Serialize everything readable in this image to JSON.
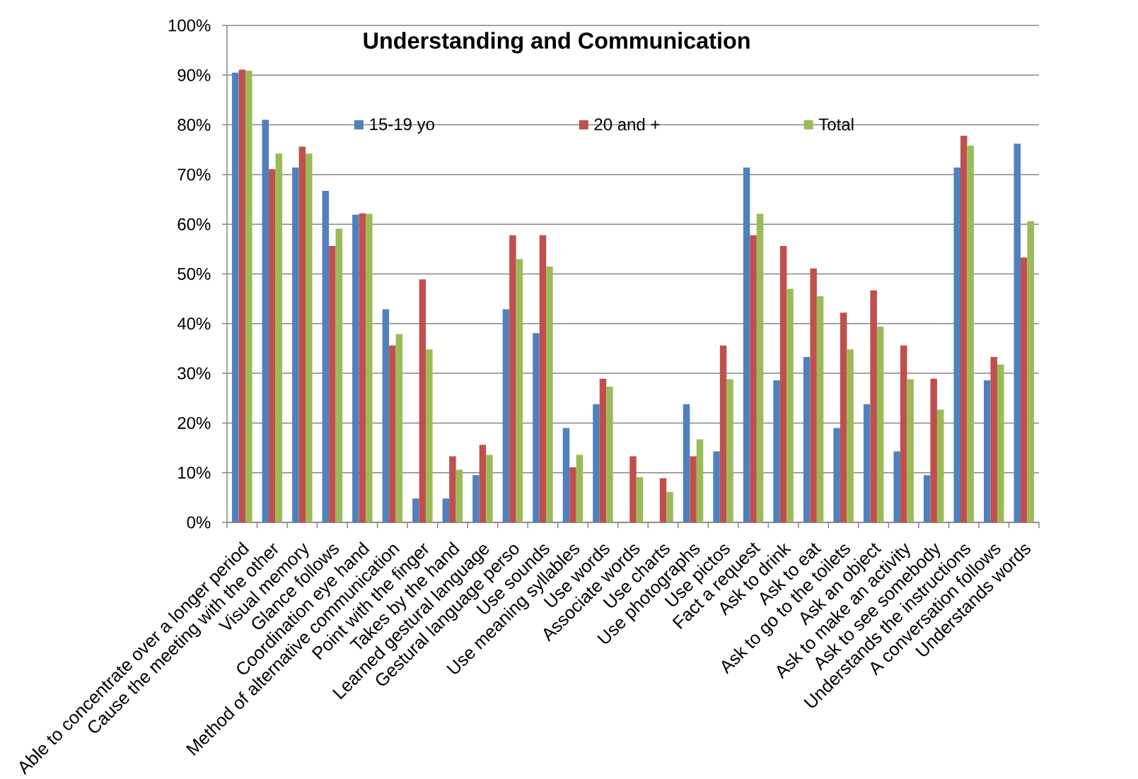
{
  "chart_data": {
    "type": "bar",
    "title": "Understanding and Communication",
    "categories": [
      "Able to concentrate over a longer period",
      "Cause the meeting with the other",
      "Visual memory",
      "Glance follows",
      "Coordination eye hand",
      "Method of alternative communication",
      "Point with the finger",
      "Takes by the hand",
      "Learned gestural language",
      "Gestural language perso",
      "Use sounds",
      "Use meaning syllables",
      "Use words",
      "Associate words",
      "Use charts",
      "Use photographs",
      "Use pictos",
      "Fact a request",
      "Ask to drink",
      "Ask to eat",
      "Ask to go to the toilets",
      "Ask an object",
      "Ask to make an activity",
      "Ask to see somebody",
      "Understands the instructions",
      "A conversation follows",
      "Understands words"
    ],
    "series": [
      {
        "name": "15-19 yo",
        "color": "#4f81bd",
        "values": [
          90.5,
          81.0,
          71.4,
          66.7,
          61.9,
          42.9,
          4.8,
          4.8,
          9.5,
          42.9,
          38.1,
          19.0,
          23.8,
          0,
          0,
          23.8,
          14.3,
          71.4,
          28.6,
          33.3,
          19.0,
          23.8,
          14.3,
          9.5,
          71.4,
          28.6,
          76.2
        ]
      },
      {
        "name": "20 and +",
        "color": "#c0504d",
        "values": [
          91.1,
          71.1,
          75.6,
          55.6,
          62.2,
          35.6,
          48.9,
          13.3,
          15.6,
          57.8,
          57.8,
          11.1,
          28.9,
          13.3,
          8.9,
          13.3,
          35.6,
          57.8,
          55.6,
          51.1,
          42.2,
          46.7,
          35.6,
          28.9,
          77.8,
          33.3,
          53.3
        ]
      },
      {
        "name": "Total",
        "color": "#9bbb59",
        "values": [
          90.9,
          74.2,
          74.2,
          59.1,
          62.1,
          37.9,
          34.8,
          10.6,
          13.6,
          53.0,
          51.5,
          13.6,
          27.3,
          9.1,
          6.1,
          16.7,
          28.8,
          62.1,
          47.0,
          45.5,
          34.8,
          39.4,
          28.8,
          22.7,
          75.8,
          31.8,
          60.6
        ]
      }
    ],
    "ylim": [
      0,
      100
    ],
    "yticks": [
      {
        "value": 0,
        "label": "0%"
      },
      {
        "value": 10,
        "label": "10%"
      },
      {
        "value": 20,
        "label": "20%"
      },
      {
        "value": 30,
        "label": "30%"
      },
      {
        "value": 40,
        "label": "40%"
      },
      {
        "value": 50,
        "label": "50%"
      },
      {
        "value": 60,
        "label": "60%"
      },
      {
        "value": 70,
        "label": "70%"
      },
      {
        "value": 80,
        "label": "80%"
      },
      {
        "value": 90,
        "label": "90%"
      },
      {
        "value": 100,
        "label": "100%"
      }
    ],
    "grid": "y",
    "legend": "top"
  }
}
